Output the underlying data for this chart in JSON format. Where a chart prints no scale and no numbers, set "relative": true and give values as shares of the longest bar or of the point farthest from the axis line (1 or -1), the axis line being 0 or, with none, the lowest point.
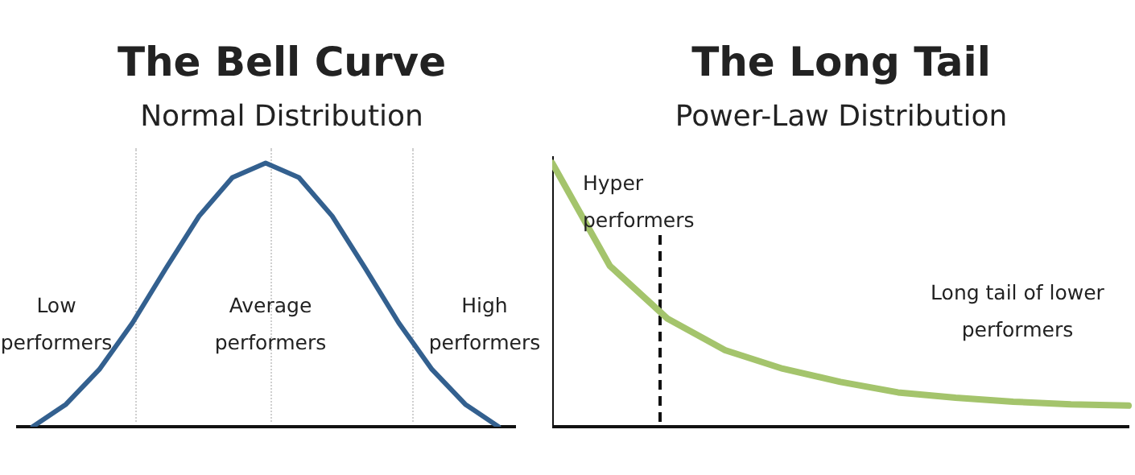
{
  "chart_data": [
    {
      "type": "line",
      "title": "The Bell Curve",
      "subtitle": "Normal Distribution",
      "relative": true,
      "grid": false,
      "legend": false,
      "marker": "none",
      "line_style": "solid",
      "categories": [
        null,
        null,
        null,
        null,
        null,
        null,
        null,
        null,
        null,
        null,
        null,
        null,
        null,
        null,
        null
      ],
      "series": [
        {
          "color": "#33608f",
          "values": [
            0,
            0.085,
            0.217,
            0.394,
            0.6,
            0.799,
            0.945,
            1,
            0.945,
            0.799,
            0.6,
            0.394,
            0.217,
            0.085,
            0
          ]
        }
      ],
      "annotations": [
        "Low performers",
        "Average performers",
        "High performers"
      ]
    },
    {
      "type": "line",
      "title": "The Long Tail",
      "subtitle": "Power-Law Distribution",
      "relative": true,
      "grid": false,
      "legend": false,
      "marker": "none",
      "line_style": "solid",
      "categories": [
        null,
        null,
        null,
        null,
        null,
        null,
        null,
        null,
        null,
        null,
        null
      ],
      "series": [
        {
          "color": "#a4c46c",
          "values": [
            1,
            0.61,
            0.41,
            0.29,
            0.22,
            0.17,
            0.13,
            0.11,
            0.095,
            0.085,
            0.08
          ]
        }
      ],
      "annotations": [
        "Hyper performers",
        "Long tail of lower performers"
      ]
    }
  ]
}
